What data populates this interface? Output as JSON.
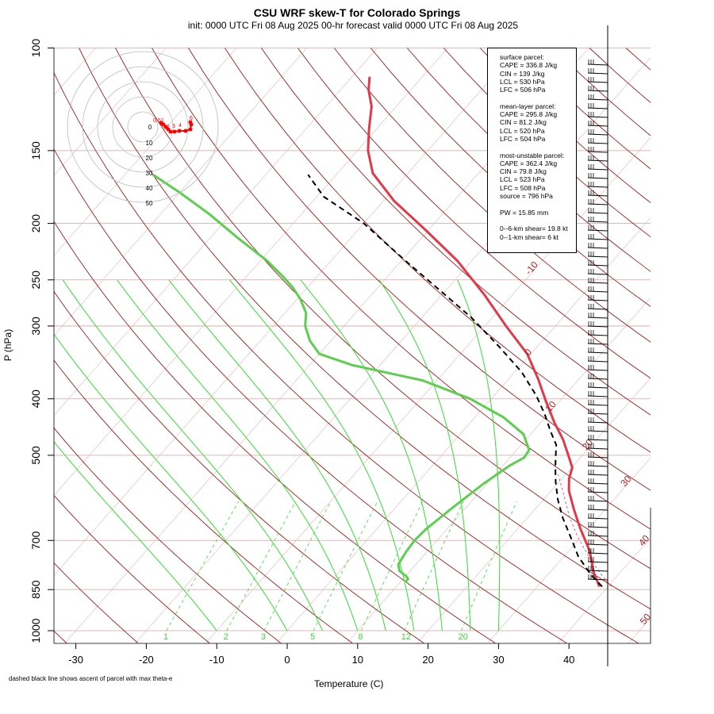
{
  "title": "CSU WRF skew-T for Colorado Springs",
  "subtitle": "init: 0000 UTC Fri 08 Aug 2025    00-hr forecast valid 0000 UTC Fri 08 Aug 2025",
  "ylabel": "P (hPa)",
  "xlabel": "Temperature (C)",
  "footnote": "dashed black line shows ascent of parcel with max theta-e",
  "info": {
    "surface": [
      "surface parcel:",
      "CAPE = 336.8 J/kg",
      "CIN = 139 J/kg",
      "LCL = 530 hPa",
      "LFC = 506 hPa"
    ],
    "mean_layer": [
      "mean-layer parcel:",
      "CAPE = 295.8 J/kg",
      "CIN = 81.2 J/kg",
      "LCL = 520 hPa",
      "LFC = 504 hPa"
    ],
    "most_unstable": [
      "most-unstable parcel:",
      "CAPE = 362.4 J/kg",
      "CIN = 79.8 J/kg",
      "LCL = 523 hPa",
      "LFC = 508 hPa",
      "source = 796 hPa"
    ],
    "pw": "PW =  15.85 mm",
    "shear": [
      "0--6-km shear= 19.8 kt",
      "0--1-km shear= 6 kt"
    ]
  },
  "chart_data": {
    "type": "line",
    "title": "CSU WRF skew-T for Colorado Springs",
    "xlabel": "Temperature (C)",
    "ylabel": "P (hPa)",
    "log_pressure_axis": true,
    "skewed_temperature_axis": true,
    "xlim": [
      -33,
      51
    ],
    "ylim": [
      1050,
      100
    ],
    "x_ticks": [
      -30,
      -20,
      -10,
      0,
      10,
      20,
      30,
      40
    ],
    "y_ticks": [
      100,
      150,
      200,
      250,
      300,
      400,
      500,
      700,
      850,
      1000
    ],
    "isotherm_labels": [
      {
        "value": "-10",
        "color": "#b22222"
      },
      {
        "value": "0",
        "color": "#b22222"
      },
      {
        "value": "10",
        "color": "#b22222"
      },
      {
        "value": "20",
        "color": "#b22222"
      },
      {
        "value": "30",
        "color": "#b22222"
      },
      {
        "value": "40",
        "color": "#b22222"
      },
      {
        "value": "50",
        "color": "#b22222"
      }
    ],
    "mixing_ratio_labels": [
      "1",
      "2",
      "3",
      "5",
      "8",
      "12",
      "20"
    ],
    "colors": {
      "temperature": "#e03a4a",
      "dewpoint": "#5ccf50",
      "parcel": "#000000",
      "isotherm": "#9b1c1c",
      "isobar": "#d9a0a0",
      "moist_adiabat": "#33dd33",
      "mixing_ratio": "#33dd33",
      "hodograph": "#ff0000"
    },
    "series": [
      {
        "key": "temperature",
        "points": [
          [
            38.8,
            840
          ],
          [
            36.0,
            790
          ],
          [
            33.0,
            730
          ],
          [
            29.0,
            670
          ],
          [
            25.6,
            620
          ],
          [
            22.5,
            575
          ],
          [
            21.0,
            548
          ],
          [
            20.1,
            525
          ],
          [
            18.0,
            500
          ],
          [
            15.3,
            470
          ],
          [
            12.0,
            440
          ],
          [
            8.2,
            405
          ],
          [
            4.2,
            370
          ],
          [
            -0.5,
            335
          ],
          [
            -7.0,
            300
          ],
          [
            -14.0,
            265
          ],
          [
            -22.0,
            232
          ],
          [
            -30.5,
            205
          ],
          [
            -38.5,
            183
          ],
          [
            -45.0,
            164
          ],
          [
            -48.5,
            150
          ],
          [
            -51.0,
            138
          ],
          [
            -53.5,
            126
          ],
          [
            -56.0,
            118
          ],
          [
            -57.5,
            112
          ]
        ]
      },
      {
        "key": "dewpoint",
        "points": [
          [
            10.7,
            825
          ],
          [
            10.7,
            815
          ],
          [
            10.0,
            805
          ],
          [
            8.5,
            790
          ],
          [
            7.5,
            770
          ],
          [
            7.0,
            730
          ],
          [
            6.8,
            700
          ],
          [
            7.0,
            670
          ],
          [
            8.0,
            620
          ],
          [
            9.5,
            560
          ],
          [
            11.0,
            520
          ],
          [
            12.0,
            505
          ],
          [
            11.8,
            490
          ],
          [
            9.0,
            460
          ],
          [
            4.0,
            430
          ],
          [
            -3.0,
            400
          ],
          [
            -12.0,
            372
          ],
          [
            -24.0,
            350
          ],
          [
            -30.0,
            335
          ],
          [
            -33.0,
            318
          ],
          [
            -35.5,
            300
          ],
          [
            -37.0,
            285
          ],
          [
            -39.5,
            270
          ],
          [
            -42.0,
            258
          ],
          [
            -44.5,
            248
          ],
          [
            -49.0,
            232
          ],
          [
            -56.0,
            212
          ],
          [
            -63.0,
            193
          ],
          [
            -70.0,
            177
          ],
          [
            -76.0,
            165
          ]
        ]
      },
      {
        "key": "parcel",
        "points": [
          [
            39.2,
            840
          ],
          [
            36.0,
            800
          ],
          [
            32.0,
            745
          ],
          [
            28.5,
            690
          ],
          [
            25.0,
            640
          ],
          [
            22.0,
            595
          ],
          [
            19.5,
            555
          ],
          [
            18.0,
            530
          ],
          [
            16.5,
            505
          ],
          [
            15.0,
            480
          ],
          [
            12.5,
            455
          ],
          [
            9.5,
            425
          ],
          [
            6.0,
            395
          ],
          [
            1.0,
            360
          ],
          [
            -5.5,
            325
          ],
          [
            -13.0,
            290
          ],
          [
            -21.0,
            260
          ],
          [
            -30.0,
            230
          ],
          [
            -40.0,
            200
          ],
          [
            -49.0,
            180
          ],
          [
            -54.0,
            165
          ]
        ]
      },
      {
        "key": "parcel_thin",
        "points": [
          [
            40.5,
            840
          ],
          [
            37.5,
            800
          ],
          [
            33.5,
            745
          ],
          [
            29.5,
            690
          ],
          [
            26.0,
            640
          ],
          [
            23.0,
            595
          ],
          [
            20.5,
            560
          ],
          [
            19.0,
            540
          ]
        ]
      }
    ],
    "hodograph": {
      "rings": [
        "10",
        "20",
        "30",
        "40",
        "50"
      ],
      "center_label": "0",
      "point_labels": [
        "0.5",
        "1",
        "2",
        "3",
        "4",
        "6"
      ]
    }
  }
}
